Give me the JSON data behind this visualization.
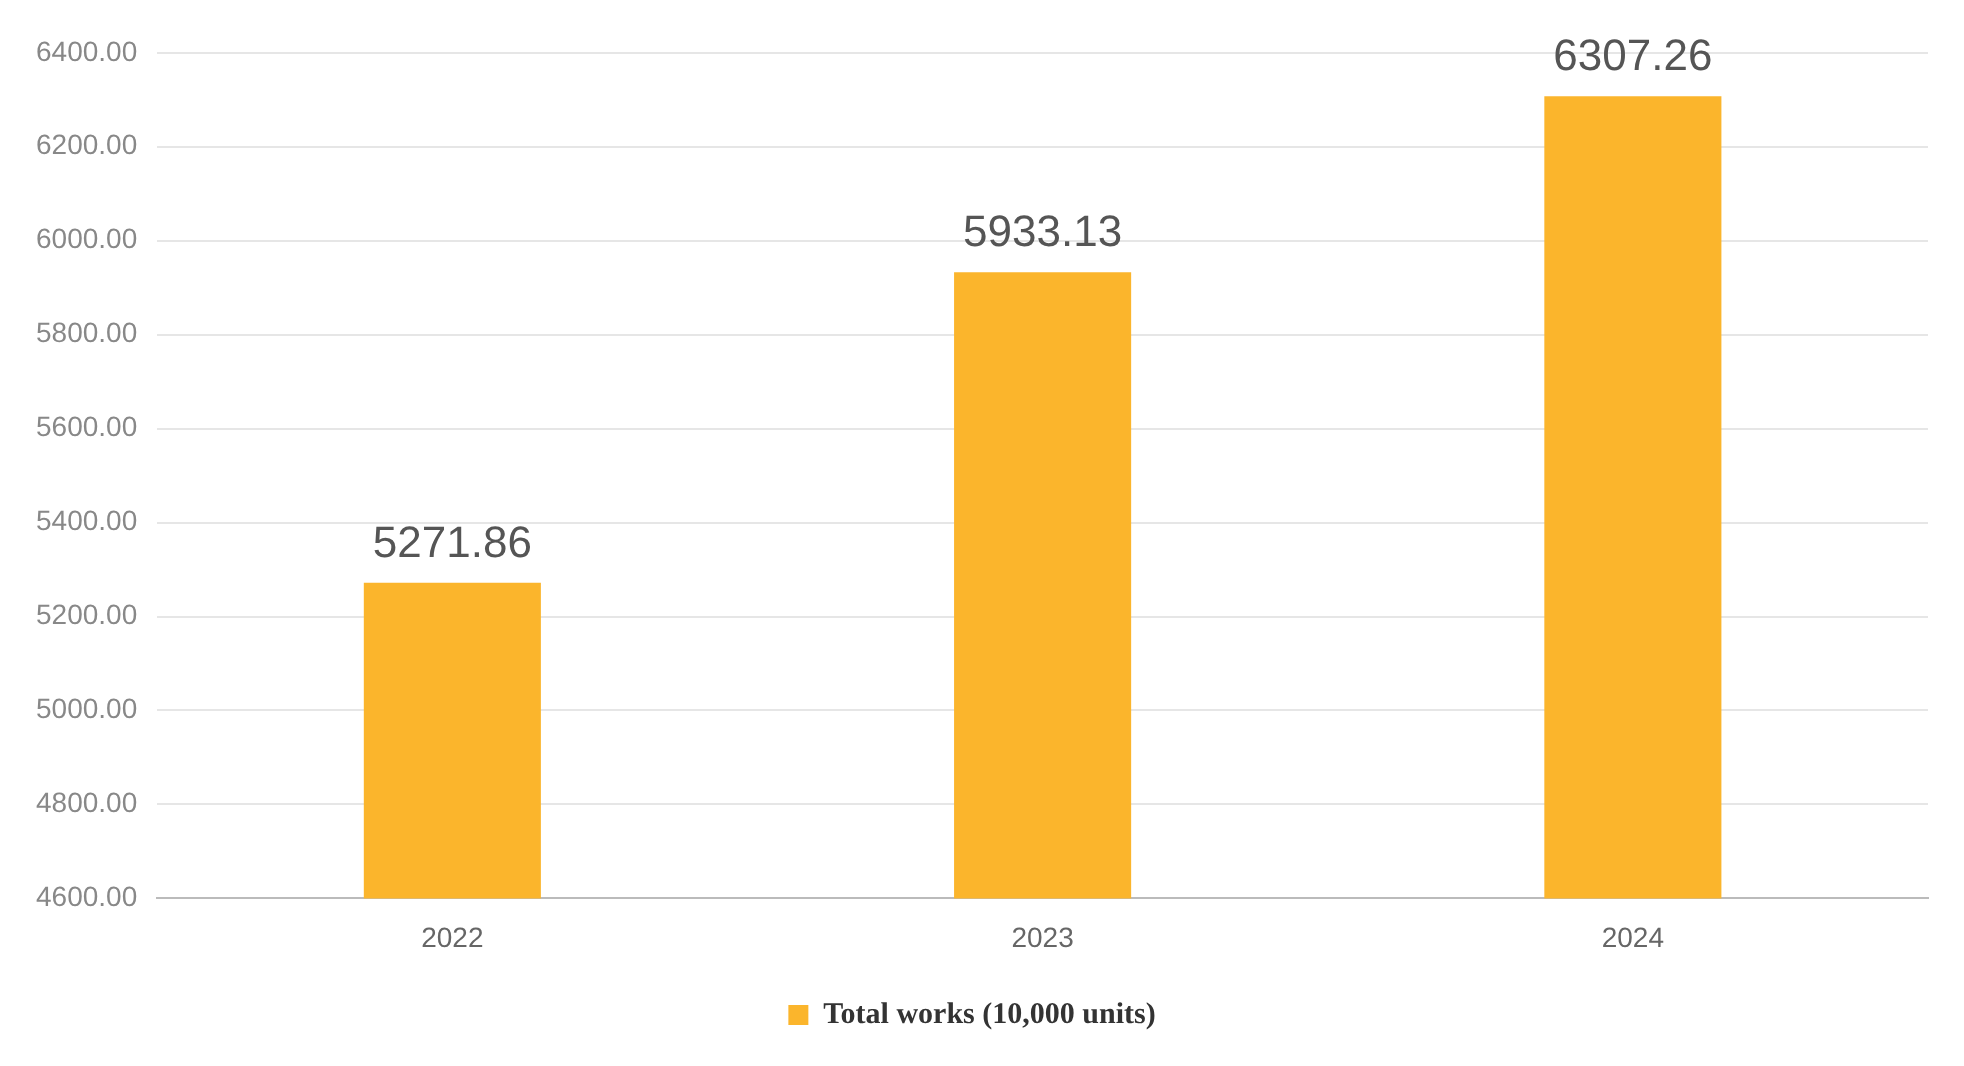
{
  "chart_data": {
    "type": "bar",
    "categories": [
      "2022",
      "2023",
      "2024"
    ],
    "series": [
      {
        "name": "Total works (10,000 units)",
        "color": "#fbb52c",
        "values": [
          5271.86,
          5933.13,
          6307.26
        ]
      }
    ],
    "ylim": [
      4600,
      6400
    ],
    "yticks": [
      {
        "value": 4600,
        "label": "4600.00"
      },
      {
        "value": 4800,
        "label": "4800.00"
      },
      {
        "value": 5000,
        "label": "5000.00"
      },
      {
        "value": 5200,
        "label": "5200.00"
      },
      {
        "value": 5400,
        "label": "5400.00"
      },
      {
        "value": 5600,
        "label": "5600.00"
      },
      {
        "value": 5800,
        "label": "5800.00"
      },
      {
        "value": 6000,
        "label": "6000.00"
      },
      {
        "value": 6200,
        "label": "6200.00"
      },
      {
        "value": 6400,
        "label": "6400.00"
      }
    ],
    "grid": "y",
    "legend": "bottom",
    "data_labels": true
  }
}
